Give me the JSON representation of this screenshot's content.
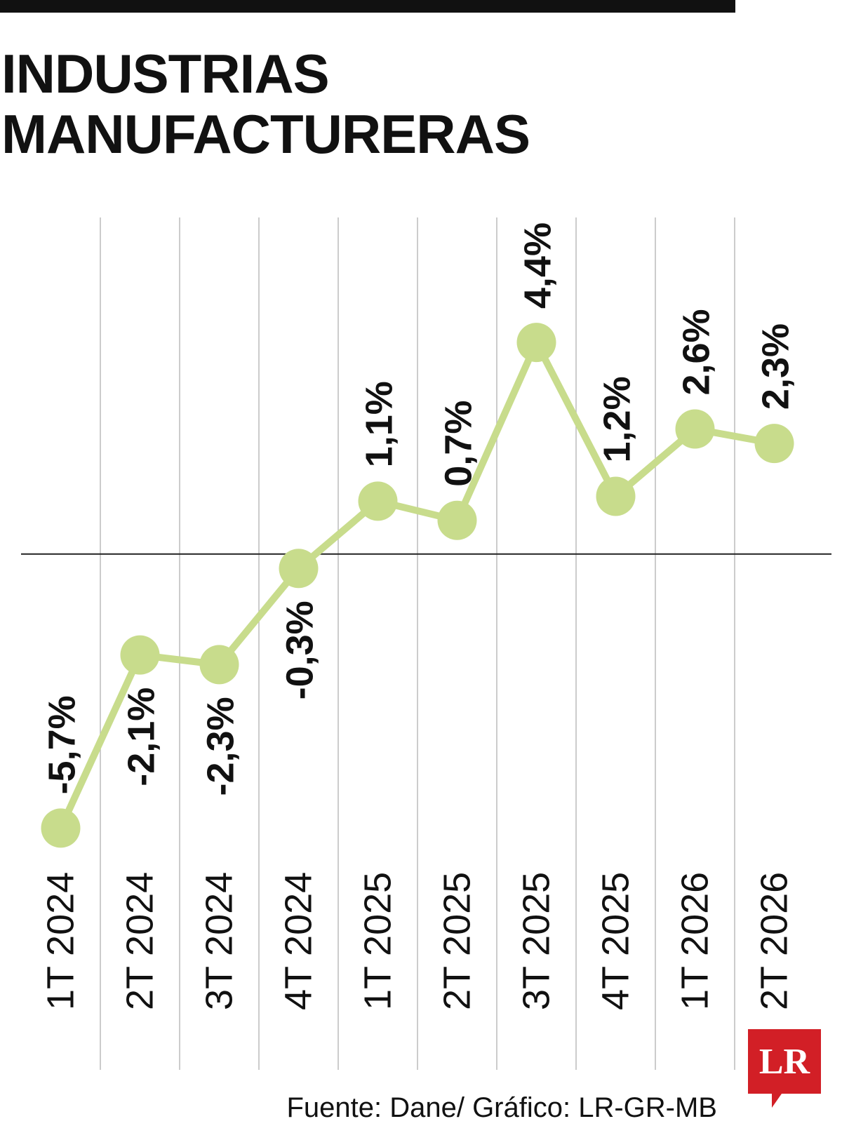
{
  "chart_data": {
    "type": "line",
    "title": "INDUSTRIAS MANUFACTURERAS",
    "categories": [
      "1T 2024",
      "2T 2024",
      "3T 2024",
      "4T 2024",
      "1T 2025",
      "2T 2025",
      "3T 2025",
      "4T 2025",
      "1T 2026",
      "2T 2026"
    ],
    "series": [
      {
        "color": "#c8dc8c",
        "values": [
          -5.7,
          -2.1,
          -2.3,
          -0.3,
          1.1,
          0.7,
          4.4,
          1.2,
          2.6,
          2.3
        ],
        "value_labels": [
          "-5,7%",
          "-2,1%",
          "-2,3%",
          "-0,3%",
          "1,1%",
          "0,7%",
          "4,4%",
          "1,2%",
          "2,6%",
          "2,3%"
        ]
      }
    ],
    "ylim": [
      -6,
      5
    ],
    "source": "Fuente: Dane/ Gráfico: LR-GR-MB",
    "logo": "LR"
  }
}
